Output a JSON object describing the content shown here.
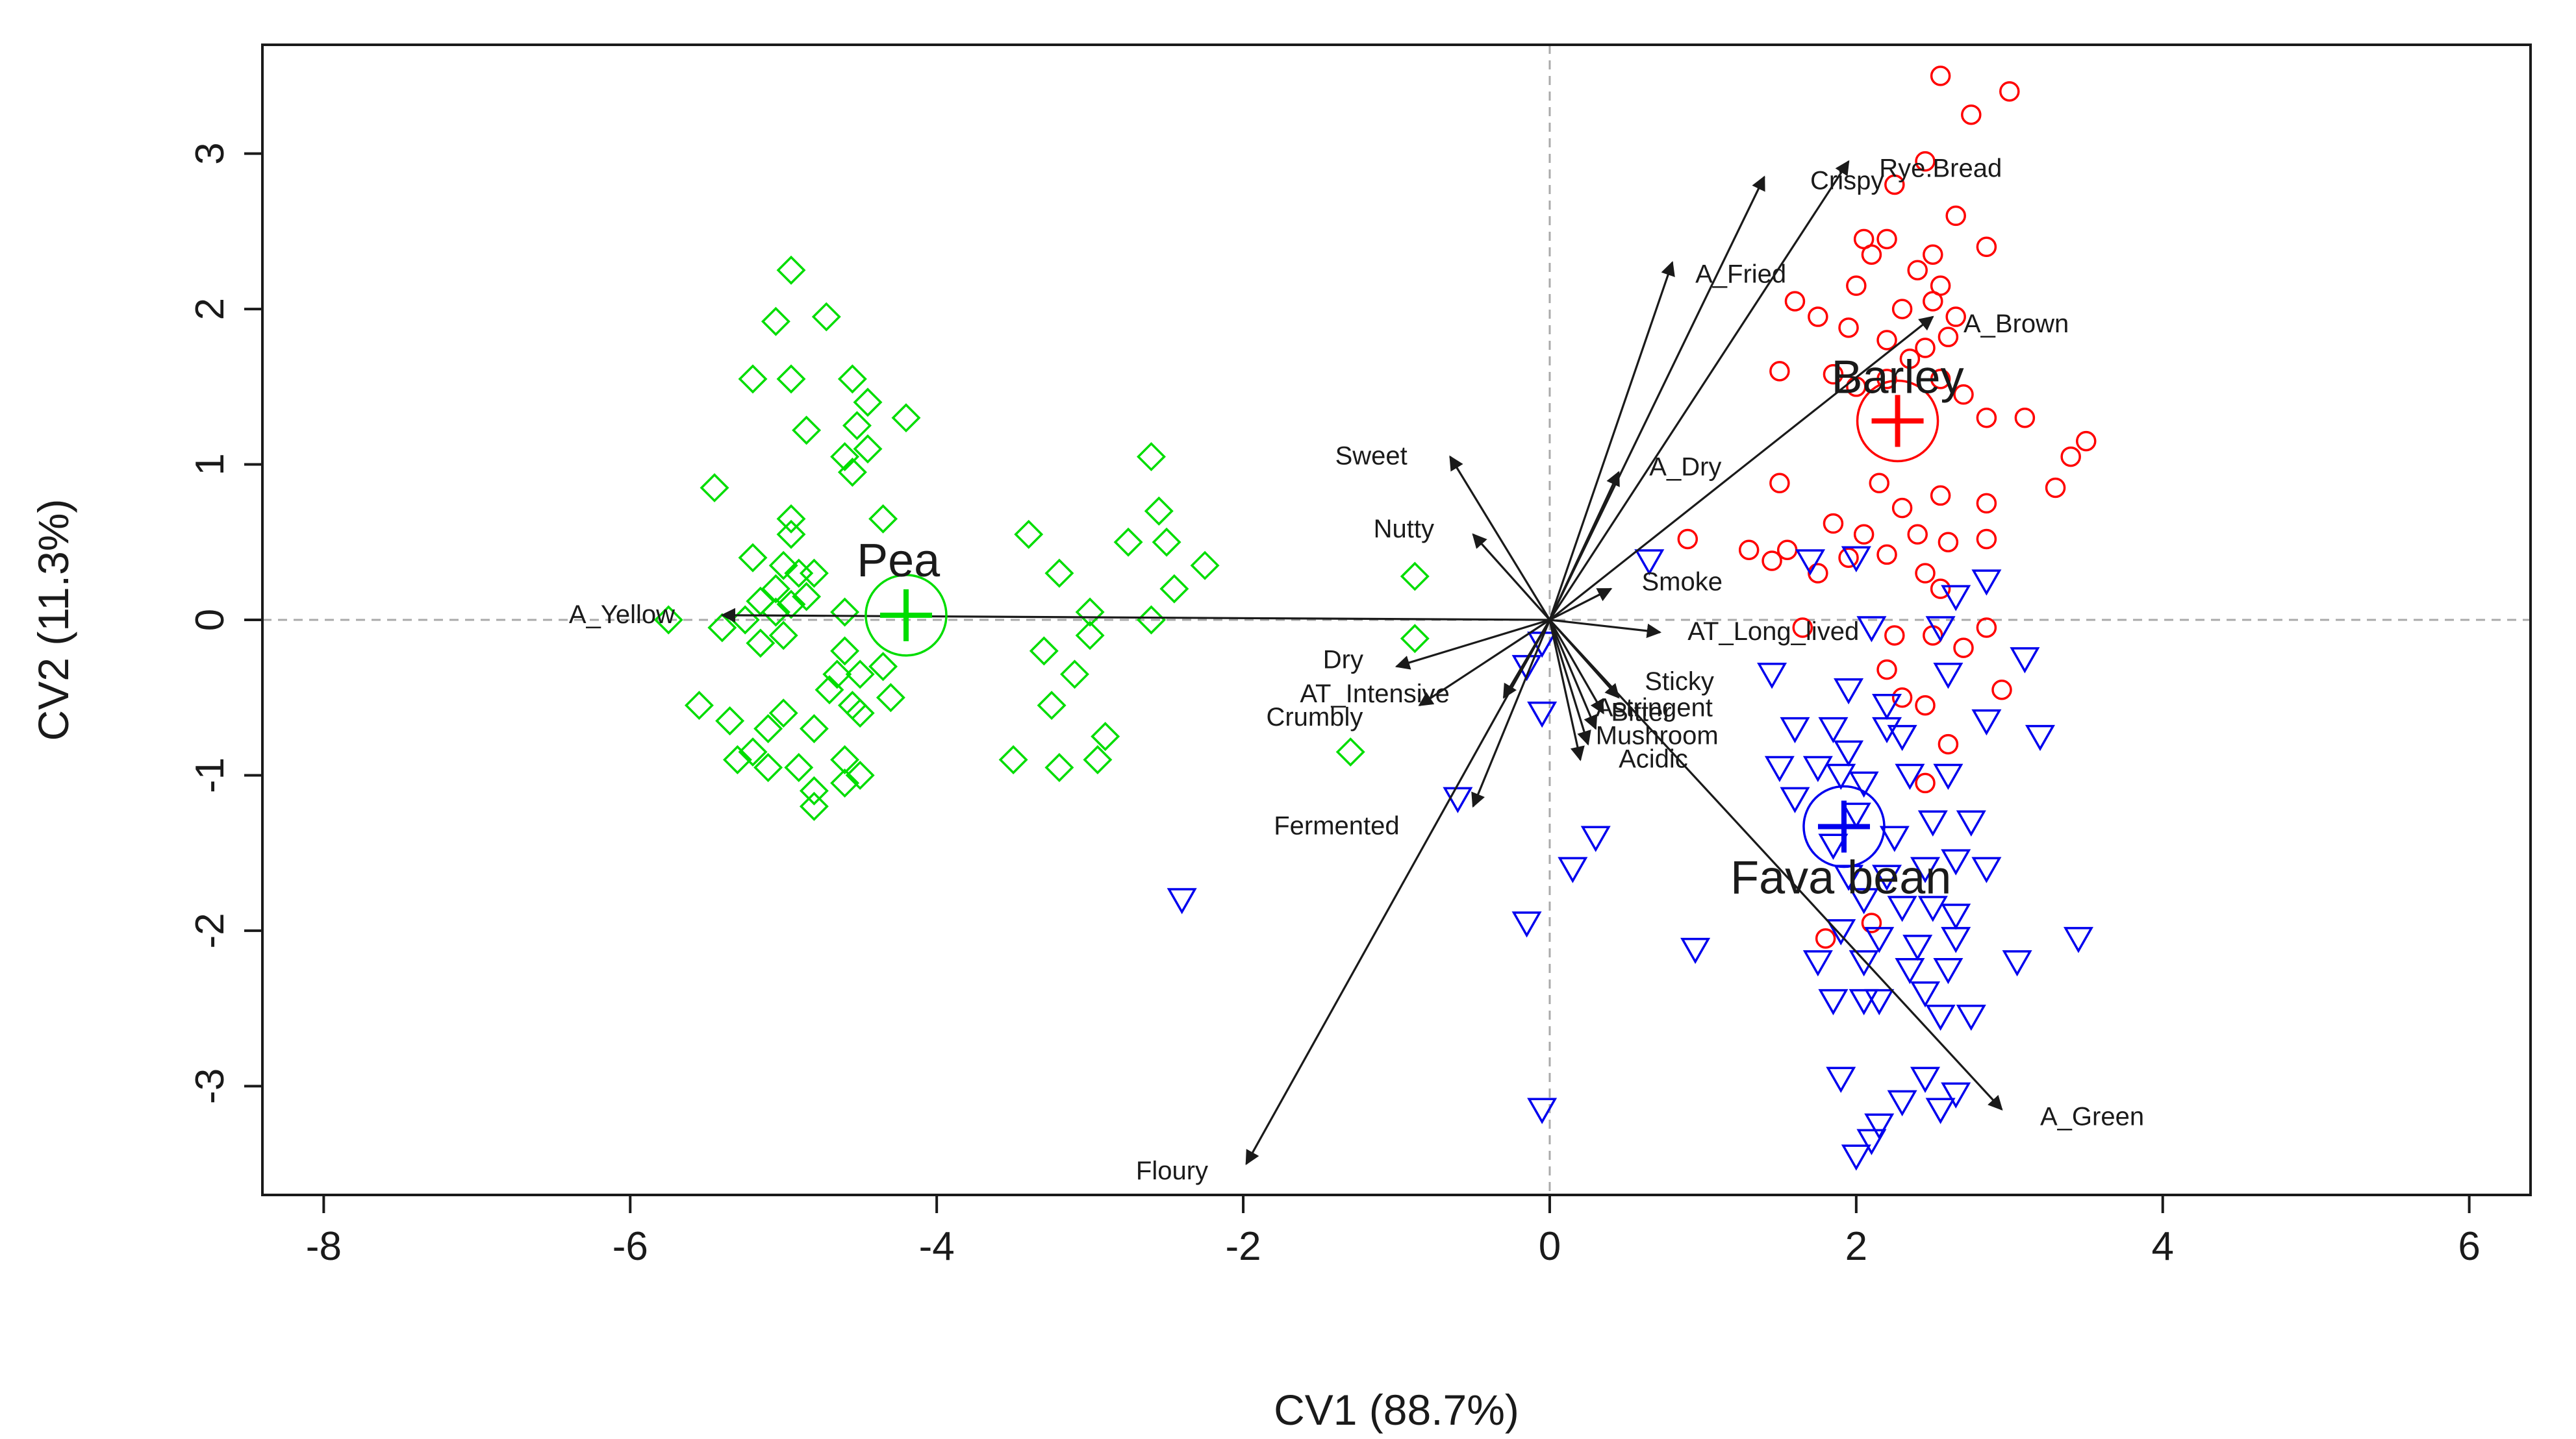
{
  "chart_data": {
    "type": "scatter",
    "title": "",
    "xlabel": "CV1 (88.7%)",
    "ylabel": "CV2 (11.3%)",
    "xlim": [
      -8.4,
      6.4
    ],
    "ylim": [
      -3.7,
      3.7
    ],
    "xticks": [
      -8,
      -6,
      -4,
      -2,
      0,
      2,
      4,
      6
    ],
    "yticks": [
      -3,
      -2,
      -1,
      0,
      1,
      2,
      3
    ],
    "xtick_labels": [
      "-8",
      "-6",
      "-4",
      "-2",
      "0",
      "2",
      "4",
      "6"
    ],
    "ytick_labels": [
      "-3",
      "-2",
      "-1",
      "0",
      "1",
      "2",
      "3"
    ],
    "grid": false,
    "reference_lines": {
      "x": 0,
      "y": 0,
      "style": "dashed"
    },
    "groups": [
      {
        "name": "Pea",
        "color": "#00dd00",
        "marker": "diamond",
        "centroid": [
          -4.2,
          0.03
        ]
      },
      {
        "name": "Barley",
        "color": "#ff0000",
        "marker": "circle",
        "centroid": [
          2.27,
          1.28
        ]
      },
      {
        "name": "Fava bean",
        "color": "#0000ee",
        "marker": "triangle-down",
        "centroid": [
          1.92,
          -1.33
        ]
      }
    ],
    "series": [
      {
        "name": "Pea",
        "points": [
          [
            -4.95,
            2.25
          ],
          [
            -4.72,
            1.95
          ],
          [
            -5.05,
            1.92
          ],
          [
            -5.2,
            1.55
          ],
          [
            -4.95,
            1.55
          ],
          [
            -4.55,
            1.55
          ],
          [
            -4.45,
            1.4
          ],
          [
            -4.85,
            1.22
          ],
          [
            -4.52,
            1.25
          ],
          [
            -4.2,
            1.3
          ],
          [
            -4.6,
            1.05
          ],
          [
            -4.45,
            1.1
          ],
          [
            -4.55,
            0.95
          ],
          [
            -5.45,
            0.85
          ],
          [
            -4.95,
            0.65
          ],
          [
            -4.95,
            0.55
          ],
          [
            -4.35,
            0.65
          ],
          [
            -5.2,
            0.4
          ],
          [
            -5.0,
            0.35
          ],
          [
            -4.9,
            0.3
          ],
          [
            -4.8,
            0.3
          ],
          [
            -5.05,
            0.2
          ],
          [
            -5.15,
            0.12
          ],
          [
            -4.95,
            0.1
          ],
          [
            -4.85,
            0.15
          ],
          [
            -4.6,
            0.05
          ],
          [
            -5.05,
            0.05
          ],
          [
            -5.25,
            0.0
          ],
          [
            -5.4,
            -0.05
          ],
          [
            -5.75,
            0.0
          ],
          [
            -5.0,
            -0.1
          ],
          [
            -5.15,
            -0.15
          ],
          [
            -4.6,
            -0.2
          ],
          [
            -4.35,
            -0.3
          ],
          [
            -4.5,
            -0.35
          ],
          [
            -4.65,
            -0.35
          ],
          [
            -4.7,
            -0.45
          ],
          [
            -4.55,
            -0.55
          ],
          [
            -4.3,
            -0.5
          ],
          [
            -5.55,
            -0.55
          ],
          [
            -5.35,
            -0.65
          ],
          [
            -5.1,
            -0.7
          ],
          [
            -4.8,
            -0.7
          ],
          [
            -5.0,
            -0.6
          ],
          [
            -4.5,
            -0.6
          ],
          [
            -5.2,
            -0.85
          ],
          [
            -5.3,
            -0.9
          ],
          [
            -5.1,
            -0.95
          ],
          [
            -4.9,
            -0.95
          ],
          [
            -4.6,
            -0.9
          ],
          [
            -4.5,
            -1.0
          ],
          [
            -4.8,
            -1.1
          ],
          [
            -4.6,
            -1.05
          ],
          [
            -4.8,
            -1.2
          ],
          [
            -3.4,
            0.55
          ],
          [
            -3.2,
            0.3
          ],
          [
            -3.3,
            -0.2
          ],
          [
            -3.1,
            -0.35
          ],
          [
            -3.25,
            -0.55
          ],
          [
            -3.5,
            -0.9
          ],
          [
            -3.2,
            -0.95
          ],
          [
            -2.9,
            -0.75
          ],
          [
            -2.95,
            -0.9
          ],
          [
            -2.6,
            1.05
          ],
          [
            -2.55,
            0.7
          ],
          [
            -2.75,
            0.5
          ],
          [
            -2.5,
            0.5
          ],
          [
            -2.25,
            0.35
          ],
          [
            -2.45,
            0.2
          ],
          [
            -3.0,
            0.05
          ],
          [
            -2.6,
            0.0
          ],
          [
            -3.0,
            -0.1
          ],
          [
            -0.88,
            0.28
          ],
          [
            -0.88,
            -0.12
          ],
          [
            -1.3,
            -0.85
          ]
        ]
      },
      {
        "name": "Barley",
        "points": [
          [
            2.55,
            3.5
          ],
          [
            3.0,
            3.4
          ],
          [
            2.75,
            3.25
          ],
          [
            2.45,
            2.95
          ],
          [
            2.25,
            2.8
          ],
          [
            2.65,
            2.6
          ],
          [
            2.05,
            2.45
          ],
          [
            2.1,
            2.35
          ],
          [
            2.2,
            2.45
          ],
          [
            2.5,
            2.35
          ],
          [
            2.85,
            2.4
          ],
          [
            2.0,
            2.15
          ],
          [
            2.4,
            2.25
          ],
          [
            2.55,
            2.15
          ],
          [
            2.5,
            2.05
          ],
          [
            2.3,
            2.0
          ],
          [
            2.65,
            1.95
          ],
          [
            1.6,
            2.05
          ],
          [
            1.75,
            1.95
          ],
          [
            1.95,
            1.88
          ],
          [
            2.2,
            1.8
          ],
          [
            2.45,
            1.75
          ],
          [
            2.6,
            1.82
          ],
          [
            2.35,
            1.68
          ],
          [
            2.55,
            1.55
          ],
          [
            1.85,
            1.58
          ],
          [
            2.0,
            1.5
          ],
          [
            2.2,
            1.55
          ],
          [
            2.7,
            1.45
          ],
          [
            2.85,
            1.3
          ],
          [
            3.1,
            1.3
          ],
          [
            1.5,
            1.6
          ],
          [
            3.5,
            1.15
          ],
          [
            3.4,
            1.05
          ],
          [
            3.3,
            0.85
          ],
          [
            2.85,
            0.75
          ],
          [
            2.55,
            0.8
          ],
          [
            2.3,
            0.72
          ],
          [
            2.15,
            0.88
          ],
          [
            1.5,
            0.88
          ],
          [
            1.85,
            0.62
          ],
          [
            2.05,
            0.55
          ],
          [
            2.4,
            0.55
          ],
          [
            2.6,
            0.5
          ],
          [
            2.85,
            0.52
          ],
          [
            1.95,
            0.4
          ],
          [
            2.2,
            0.42
          ],
          [
            2.45,
            0.3
          ],
          [
            2.55,
            0.2
          ],
          [
            0.9,
            0.52
          ],
          [
            1.3,
            0.45
          ],
          [
            1.45,
            0.38
          ],
          [
            1.55,
            0.45
          ],
          [
            1.75,
            0.3
          ],
          [
            1.65,
            -0.05
          ],
          [
            2.25,
            -0.1
          ],
          [
            2.5,
            -0.1
          ],
          [
            2.85,
            -0.05
          ],
          [
            2.7,
            -0.18
          ],
          [
            2.2,
            -0.32
          ],
          [
            2.3,
            -0.5
          ],
          [
            2.45,
            -0.55
          ],
          [
            2.95,
            -0.45
          ],
          [
            2.6,
            -0.8
          ],
          [
            2.45,
            -1.05
          ],
          [
            1.8,
            -2.05
          ],
          [
            2.1,
            -1.95
          ]
        ]
      },
      {
        "name": "Fava bean",
        "points": [
          [
            0.65,
            0.38
          ],
          [
            1.7,
            0.38
          ],
          [
            2.0,
            0.4
          ],
          [
            2.65,
            0.15
          ],
          [
            2.85,
            0.25
          ],
          [
            2.1,
            -0.05
          ],
          [
            2.55,
            -0.05
          ],
          [
            2.6,
            -0.35
          ],
          [
            1.45,
            -0.35
          ],
          [
            1.95,
            -0.45
          ],
          [
            2.2,
            -0.55
          ],
          [
            3.1,
            -0.25
          ],
          [
            1.6,
            -0.7
          ],
          [
            1.85,
            -0.7
          ],
          [
            2.2,
            -0.7
          ],
          [
            1.95,
            -0.85
          ],
          [
            2.3,
            -0.75
          ],
          [
            2.85,
            -0.65
          ],
          [
            3.2,
            -0.75
          ],
          [
            1.5,
            -0.95
          ],
          [
            1.75,
            -0.95
          ],
          [
            1.9,
            -1.0
          ],
          [
            2.05,
            -1.05
          ],
          [
            2.35,
            -1.0
          ],
          [
            2.6,
            -1.0
          ],
          [
            1.6,
            -1.15
          ],
          [
            2.0,
            -1.25
          ],
          [
            1.85,
            -1.45
          ],
          [
            2.25,
            -1.4
          ],
          [
            2.5,
            -1.3
          ],
          [
            2.75,
            -1.3
          ],
          [
            1.95,
            -1.65
          ],
          [
            2.2,
            -1.65
          ],
          [
            2.45,
            -1.6
          ],
          [
            2.65,
            -1.55
          ],
          [
            2.85,
            -1.6
          ],
          [
            2.05,
            -1.8
          ],
          [
            2.3,
            -1.85
          ],
          [
            2.5,
            -1.85
          ],
          [
            2.65,
            -1.9
          ],
          [
            1.9,
            -2.0
          ],
          [
            2.15,
            -2.05
          ],
          [
            2.4,
            -2.1
          ],
          [
            2.65,
            -2.05
          ],
          [
            1.75,
            -2.2
          ],
          [
            2.05,
            -2.2
          ],
          [
            2.35,
            -2.25
          ],
          [
            2.6,
            -2.25
          ],
          [
            3.05,
            -2.2
          ],
          [
            3.45,
            -2.05
          ],
          [
            2.45,
            -2.4
          ],
          [
            2.15,
            -2.45
          ],
          [
            2.05,
            -2.45
          ],
          [
            1.85,
            -2.45
          ],
          [
            2.55,
            -2.55
          ],
          [
            2.75,
            -2.55
          ],
          [
            2.45,
            -2.95
          ],
          [
            1.9,
            -2.95
          ],
          [
            2.3,
            -3.1
          ],
          [
            2.55,
            -3.15
          ],
          [
            2.65,
            -3.05
          ],
          [
            2.15,
            -3.25
          ],
          [
            2.1,
            -3.35
          ],
          [
            2.0,
            -3.45
          ],
          [
            0.95,
            -2.12
          ],
          [
            0.3,
            -1.4
          ],
          [
            0.15,
            -1.6
          ],
          [
            -0.15,
            -1.95
          ],
          [
            -0.05,
            -3.15
          ],
          [
            -2.4,
            -1.8
          ],
          [
            -0.6,
            -1.15
          ],
          [
            -0.05,
            -0.6
          ],
          [
            -0.15,
            -0.3
          ],
          [
            -0.05,
            -0.15
          ]
        ]
      }
    ],
    "loadings": [
      {
        "label": "A_Yellow",
        "x": -5.4,
        "y": 0.03
      },
      {
        "label": "A_Green",
        "x": 2.95,
        "y": -3.15
      },
      {
        "label": "Floury",
        "x": -1.98,
        "y": -3.5
      },
      {
        "label": "Rye.Bread",
        "x": 1.95,
        "y": 2.95
      },
      {
        "label": "Crispy",
        "x": 1.4,
        "y": 2.85
      },
      {
        "label": "A_Fried",
        "x": 0.8,
        "y": 2.3
      },
      {
        "label": "A_Brown",
        "x": 2.5,
        "y": 1.95
      },
      {
        "label": "A_Dry",
        "x": 0.45,
        "y": 0.95
      },
      {
        "label": "Sweet",
        "x": -0.65,
        "y": 1.05
      },
      {
        "label": "Nutty",
        "x": -0.5,
        "y": 0.55
      },
      {
        "label": "Smoke",
        "x": 0.4,
        "y": 0.2
      },
      {
        "label": "AT_Long_lived",
        "x": 0.72,
        "y": -0.08
      },
      {
        "label": "Dry",
        "x": -1.0,
        "y": -0.3
      },
      {
        "label": "AT_Intensive",
        "x": -0.85,
        "y": -0.55
      },
      {
        "label": "Crumbly",
        "x": -0.3,
        "y": -0.5
      },
      {
        "label": "Fermented",
        "x": -0.5,
        "y": -1.2
      },
      {
        "label": "Sticky",
        "x": 0.45,
        "y": -0.5
      },
      {
        "label": "Astringent",
        "x": 0.35,
        "y": -0.6
      },
      {
        "label": "Bitter",
        "x": 0.3,
        "y": -0.7
      },
      {
        "label": "Mushroom",
        "x": 0.25,
        "y": -0.8
      },
      {
        "label": "Acidic",
        "x": 0.2,
        "y": -0.9
      }
    ]
  },
  "colors": {
    "pea": "#00dd00",
    "barley": "#ff0000",
    "fava": "#0000ee",
    "ink": "#1a1a1a",
    "reference": "#aaaaaa"
  }
}
